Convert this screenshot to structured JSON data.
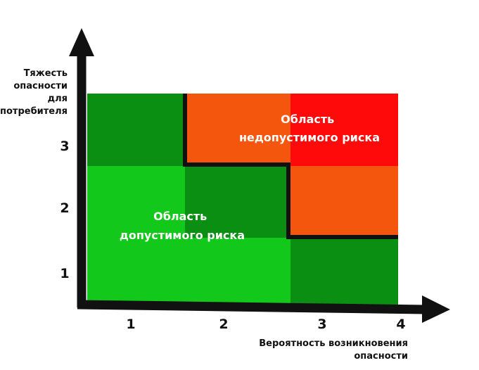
{
  "y_axis": {
    "title_lines": [
      "Тяжесть",
      "опасности",
      "для",
      "потребителя"
    ],
    "ticks": [
      "1",
      "2",
      "3"
    ]
  },
  "x_axis": {
    "title_lines": [
      "Вероятность возникновения",
      "опасности"
    ],
    "ticks": [
      "1",
      "2",
      "3",
      "4"
    ]
  },
  "regions": {
    "unacceptable": [
      "Область",
      "недопустимого риска"
    ],
    "acceptable": [
      "Область",
      "допустимого риска"
    ]
  },
  "colors": {
    "light_green": "#12c81b",
    "dark_green": "#0a8f12",
    "orange": "#f5560e",
    "red": "#ff0a0a",
    "axis": "#111111"
  },
  "cells": [
    {
      "col": 1,
      "row": 3,
      "color": "dark_green"
    },
    {
      "col": 2,
      "row": 3,
      "color": "orange"
    },
    {
      "col": 3,
      "row": 3,
      "color": "red"
    },
    {
      "col": 1,
      "row": 2,
      "color": "light_green"
    },
    {
      "col": 2,
      "row": 2,
      "color": "dark_green"
    },
    {
      "col": 3,
      "row": 2,
      "color": "orange"
    },
    {
      "col": 1,
      "row": 1,
      "color": "light_green"
    },
    {
      "col": 2,
      "row": 1,
      "color": "light_green"
    },
    {
      "col": 3,
      "row": 1,
      "color": "dark_green"
    }
  ]
}
